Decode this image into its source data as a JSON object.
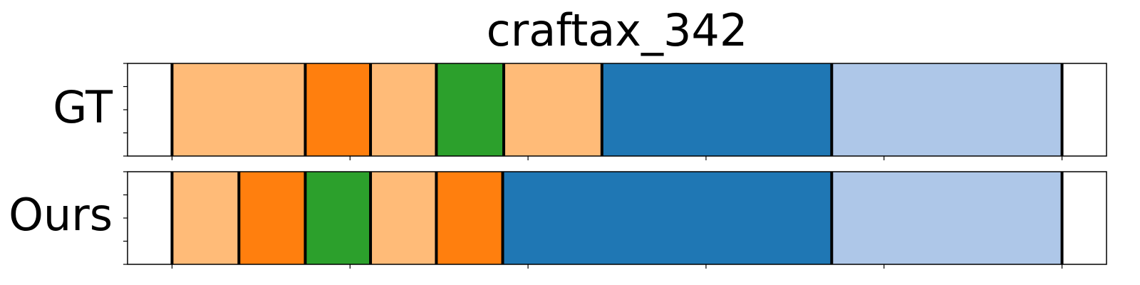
{
  "chart_data": {
    "type": "segmentation-timeline",
    "title": "craftax_342",
    "x_range": [
      0,
      165
    ],
    "x_ticks": [
      0,
      33,
      66,
      99,
      132,
      165
    ],
    "y_ticks_per_row": 5,
    "colors": {
      "light_orange": "#ffbb78",
      "orange": "#ff7f0e",
      "green": "#2ca02c",
      "blue": "#1f77b4",
      "light_blue": "#aec7e8"
    },
    "rows": [
      {
        "label": "GT",
        "segments": [
          {
            "start": 0,
            "end": 24.7,
            "color": "light_orange"
          },
          {
            "start": 24.7,
            "end": 36.8,
            "color": "orange"
          },
          {
            "start": 36.8,
            "end": 49.0,
            "color": "light_orange"
          },
          {
            "start": 49.0,
            "end": 61.5,
            "color": "green"
          },
          {
            "start": 61.5,
            "end": 79.7,
            "color": "light_orange"
          },
          {
            "start": 79.7,
            "end": 122.3,
            "color": "blue"
          },
          {
            "start": 122.3,
            "end": 165,
            "color": "light_blue"
          }
        ]
      },
      {
        "label": "Ours",
        "segments": [
          {
            "start": 0,
            "end": 12.4,
            "color": "light_orange"
          },
          {
            "start": 12.4,
            "end": 24.7,
            "color": "orange"
          },
          {
            "start": 24.7,
            "end": 36.8,
            "color": "green"
          },
          {
            "start": 36.8,
            "end": 49.0,
            "color": "light_orange"
          },
          {
            "start": 49.0,
            "end": 61.3,
            "color": "orange"
          },
          {
            "start": 61.3,
            "end": 122.3,
            "color": "blue"
          },
          {
            "start": 122.3,
            "end": 165,
            "color": "light_blue"
          }
        ]
      }
    ]
  }
}
